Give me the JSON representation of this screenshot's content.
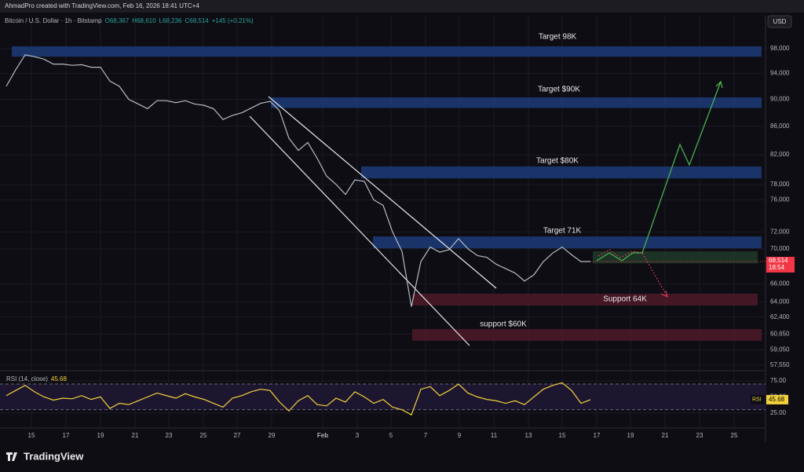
{
  "header": {
    "credit": "AhmadPro created with TradingView.com, Feb 16, 2026 18:41 UTC+4"
  },
  "legend": {
    "symbol": "Bitcoin / U.S. Dollar · 1h · Bitstamp",
    "open": "O68,367",
    "high": "H68,610",
    "low": "L68,236",
    "close": "C68,514",
    "change": "+145 (+0.21%)"
  },
  "currency": "USD",
  "footer": {
    "logo": "TradingView"
  },
  "x_axis": {
    "labels": [
      "15",
      "17",
      "19",
      "21",
      "23",
      "25",
      "27",
      "29",
      "Feb",
      "3",
      "5",
      "7",
      "9",
      "11",
      "13",
      "15",
      "17",
      "19",
      "21",
      "23",
      "25"
    ]
  },
  "chart_data": [
    {
      "type": "line",
      "log_scale": true,
      "ylim": [
        57170,
        103600
      ],
      "yticks": [
        {
          "value": 98000,
          "label": "98,000"
        },
        {
          "value": 94000,
          "label": "94,000"
        },
        {
          "value": 90000,
          "label": "90,000"
        },
        {
          "value": 86000,
          "label": "86,000"
        },
        {
          "value": 82000,
          "label": "82,000"
        },
        {
          "value": 78000,
          "label": "78,000"
        },
        {
          "value": 76000,
          "label": "76,000"
        },
        {
          "value": 72000,
          "label": "72,000"
        },
        {
          "value": 70000,
          "label": "70,000"
        },
        {
          "value": 66000,
          "label": "66,000"
        },
        {
          "value": 64000,
          "label": "64,000"
        },
        {
          "value": 62400,
          "label": "62,400"
        },
        {
          "value": 60650,
          "label": "60,650"
        },
        {
          "value": 59050,
          "label": "59,050"
        },
        {
          "value": 57550,
          "label": "57,550"
        }
      ],
      "grid": true,
      "series": [
        {
          "name": "Bitcoin / U.S. Dollar",
          "color": "#b8bbc6",
          "values": [
            92000,
            94600,
            97000,
            96700,
            96300,
            95500,
            95500,
            95300,
            95400,
            95000,
            95000,
            92800,
            92000,
            90000,
            89300,
            88600,
            89800,
            89800,
            89500,
            89800,
            89300,
            89100,
            88600,
            87000,
            87600,
            88000,
            88700,
            89400,
            89700,
            88300,
            84300,
            82600,
            83700,
            81500,
            79100,
            78000,
            76700,
            78600,
            78400,
            76000,
            75300,
            72000,
            69700,
            63500,
            68500,
            70200,
            69600,
            69900,
            71200,
            70000,
            69200,
            69000,
            68200,
            67700,
            67200,
            66300,
            67000,
            68500,
            69500,
            70200,
            69300,
            68500,
            68514
          ]
        }
      ],
      "last_price_label": "68,514",
      "countdown": "18:54",
      "zones": [
        {
          "label": "Target 98K",
          "top": 98400,
          "bottom": 96700,
          "color": "#1c3c78"
        },
        {
          "label": "Target $90K",
          "top": 90300,
          "bottom": 88700,
          "color": "#1c3c78"
        },
        {
          "label": "Target $80K",
          "top": 80400,
          "bottom": 78800,
          "color": "#1c3c78"
        },
        {
          "label": "Target 71K",
          "top": 71460,
          "bottom": 70060,
          "color": "#1c3c78"
        },
        {
          "top": 69700,
          "bottom": 68300,
          "color": "#1f3a28"
        },
        {
          "label": "Support 64K",
          "top": 64900,
          "bottom": 63630,
          "color": "#4d1a28"
        },
        {
          "label": "support $60K",
          "top": 61150,
          "bottom": 59960,
          "color": "#4d1a28"
        }
      ]
    },
    {
      "type": "line",
      "title": "RSI (14, close)",
      "ylim": [
        10,
        86
      ],
      "yticks": [
        {
          "value": 25,
          "label": "25.00"
        },
        {
          "value": 50,
          "label": "50.00"
        },
        {
          "value": 75,
          "label": "75.00"
        }
      ],
      "band": [
        30,
        70
      ],
      "series": [
        {
          "name": "RSI",
          "color": "#f2d13c",
          "values": [
            52,
            60,
            68,
            58,
            50,
            45,
            48,
            47,
            52,
            46,
            50,
            32,
            40,
            38,
            44,
            50,
            56,
            52,
            48,
            55,
            50,
            46,
            40,
            34,
            48,
            52,
            58,
            62,
            60,
            42,
            28,
            44,
            52,
            38,
            36,
            48,
            42,
            58,
            50,
            40,
            46,
            34,
            30,
            22,
            62,
            66,
            52,
            60,
            70,
            56,
            50,
            46,
            44,
            40,
            44,
            38,
            50,
            62,
            68,
            72,
            60,
            40,
            45.68
          ]
        }
      ],
      "last_label": "45.68"
    }
  ]
}
